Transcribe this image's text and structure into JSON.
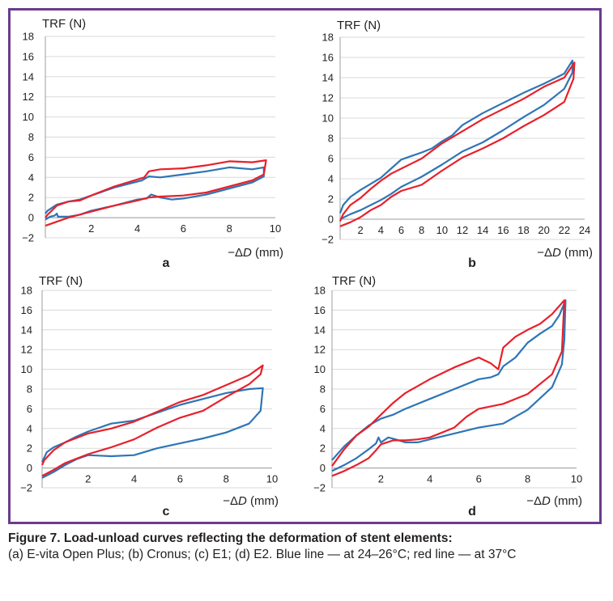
{
  "figure": {
    "caption_title": "Figure 7. Load-unload curves reflecting the deformation of stent elements:",
    "caption_body": "(a) E-vita Open Plus; (b) Cronus; (c) E1; (d) E2. Blue line — at 24–26°C; red line — at 37°C"
  },
  "colors": {
    "blue": "#2e75b6",
    "red": "#e8202a",
    "frame": "#6b3b8e",
    "grid": "#d9d9d9"
  },
  "chart_data": [
    {
      "type": "line",
      "panel_label": "a",
      "ylabel": "TRF (N)",
      "xlabel_prefix": "−Δ",
      "xlabel_var": "D",
      "xlabel_unit": " (mm)",
      "xlim": [
        0,
        10
      ],
      "ylim": [
        -2,
        18
      ],
      "xticks": [
        2,
        4,
        6,
        8,
        10
      ],
      "yticks": [
        -2,
        0,
        2,
        4,
        6,
        8,
        10,
        12,
        14,
        16,
        18
      ],
      "series": [
        {
          "color": "blue",
          "points": [
            [
              0,
              -0.2
            ],
            [
              0.2,
              0.1
            ],
            [
              0.4,
              0.2
            ],
            [
              0.5,
              0.4
            ],
            [
              0.55,
              0.1
            ],
            [
              1,
              0.1
            ],
            [
              1.5,
              0.3
            ],
            [
              2,
              0.7
            ],
            [
              3,
              1.2
            ],
            [
              4,
              1.8
            ],
            [
              4.4,
              1.9
            ],
            [
              4.6,
              2.3
            ],
            [
              5,
              2.0
            ],
            [
              5.5,
              1.8
            ],
            [
              6,
              1.9
            ],
            [
              7,
              2.3
            ],
            [
              8,
              2.9
            ],
            [
              9,
              3.5
            ],
            [
              9.5,
              4.1
            ],
            [
              9.5,
              5.0
            ],
            [
              9,
              4.8
            ],
            [
              8,
              5.0
            ],
            [
              7,
              4.6
            ],
            [
              6,
              4.3
            ],
            [
              5,
              4.0
            ],
            [
              4.5,
              4.1
            ],
            [
              4.2,
              3.7
            ],
            [
              3,
              3.0
            ],
            [
              2,
              2.2
            ],
            [
              1.5,
              1.8
            ],
            [
              1,
              1.6
            ],
            [
              0.5,
              1.3
            ],
            [
              0.1,
              0.7
            ],
            [
              0,
              0.4
            ]
          ]
        },
        {
          "color": "red",
          "points": [
            [
              0,
              -0.8
            ],
            [
              0.5,
              -0.4
            ],
            [
              1,
              0
            ],
            [
              2,
              0.6
            ],
            [
              3,
              1.2
            ],
            [
              4,
              1.7
            ],
            [
              4.5,
              2.0
            ],
            [
              5,
              2.1
            ],
            [
              6,
              2.2
            ],
            [
              7,
              2.5
            ],
            [
              8,
              3.1
            ],
            [
              9,
              3.7
            ],
            [
              9.5,
              4.3
            ],
            [
              9.6,
              5.7
            ],
            [
              9,
              5.5
            ],
            [
              8,
              5.6
            ],
            [
              7,
              5.2
            ],
            [
              6,
              4.9
            ],
            [
              5,
              4.8
            ],
            [
              4.5,
              4.6
            ],
            [
              4.3,
              4.0
            ],
            [
              3,
              3.1
            ],
            [
              2,
              2.2
            ],
            [
              1.5,
              1.7
            ],
            [
              1,
              1.6
            ],
            [
              0.5,
              1.2
            ],
            [
              0.1,
              0.3
            ],
            [
              0,
              0
            ]
          ]
        }
      ]
    },
    {
      "type": "line",
      "panel_label": "b",
      "ylabel": "TRF (N)",
      "xlabel_prefix": "−Δ",
      "xlabel_var": "D",
      "xlabel_unit": " (mm)",
      "xlim": [
        0,
        24
      ],
      "ylim": [
        -2,
        18
      ],
      "xticks": [
        2,
        4,
        6,
        8,
        10,
        12,
        14,
        16,
        18,
        20,
        22,
        24
      ],
      "yticks": [
        -2,
        0,
        2,
        4,
        6,
        8,
        10,
        12,
        14,
        16,
        18
      ],
      "series": [
        {
          "color": "blue",
          "points": [
            [
              0,
              0
            ],
            [
              1,
              0.5
            ],
            [
              2,
              0.9
            ],
            [
              3,
              1.4
            ],
            [
              4,
              1.9
            ],
            [
              5,
              2.5
            ],
            [
              6,
              3.2
            ],
            [
              8,
              4.2
            ],
            [
              10,
              5.4
            ],
            [
              12,
              6.7
            ],
            [
              14,
              7.6
            ],
            [
              16,
              8.8
            ],
            [
              18,
              10.1
            ],
            [
              20,
              11.3
            ],
            [
              22,
              12.9
            ],
            [
              22.8,
              14.5
            ],
            [
              22.8,
              15.7
            ],
            [
              22,
              14.4
            ],
            [
              20,
              13.4
            ],
            [
              18,
              12.5
            ],
            [
              16,
              11.5
            ],
            [
              14,
              10.5
            ],
            [
              12,
              9.3
            ],
            [
              11,
              8.3
            ],
            [
              10,
              7.7
            ],
            [
              9,
              7.0
            ],
            [
              8,
              6.6
            ],
            [
              6,
              5.9
            ],
            [
              5,
              5.0
            ],
            [
              4,
              4.1
            ],
            [
              3,
              3.5
            ],
            [
              2,
              2.9
            ],
            [
              1,
              2.2
            ],
            [
              0.3,
              1.4
            ],
            [
              0,
              0.6
            ]
          ]
        },
        {
          "color": "red",
          "points": [
            [
              0,
              -0.7
            ],
            [
              1,
              -0.3
            ],
            [
              2,
              0.2
            ],
            [
              3,
              0.9
            ],
            [
              4,
              1.4
            ],
            [
              5,
              2.2
            ],
            [
              6,
              2.8
            ],
            [
              8,
              3.4
            ],
            [
              10,
              4.8
            ],
            [
              12,
              6.1
            ],
            [
              14,
              7.0
            ],
            [
              16,
              8.0
            ],
            [
              18,
              9.2
            ],
            [
              20,
              10.3
            ],
            [
              22,
              11.6
            ],
            [
              22.9,
              13.9
            ],
            [
              23,
              15.5
            ],
            [
              22,
              14.0
            ],
            [
              20,
              13.1
            ],
            [
              18,
              11.9
            ],
            [
              16,
              10.9
            ],
            [
              14,
              9.9
            ],
            [
              12,
              8.7
            ],
            [
              10,
              7.5
            ],
            [
              8,
              6.0
            ],
            [
              6,
              5.0
            ],
            [
              5,
              4.5
            ],
            [
              4,
              3.8
            ],
            [
              3,
              3.0
            ],
            [
              2,
              2.1
            ],
            [
              1,
              1.4
            ],
            [
              0.3,
              0.5
            ],
            [
              0,
              -0.2
            ]
          ]
        }
      ]
    },
    {
      "type": "line",
      "panel_label": "c",
      "ylabel": "TRF (N)",
      "xlabel_prefix": "−Δ",
      "xlabel_var": "D",
      "xlabel_unit": " (mm)",
      "xlim": [
        0,
        10
      ],
      "ylim": [
        -2,
        18
      ],
      "xticks": [
        2,
        4,
        6,
        8,
        10
      ],
      "yticks": [
        -2,
        0,
        2,
        4,
        6,
        8,
        10,
        12,
        14,
        16,
        18
      ],
      "series": [
        {
          "color": "blue",
          "points": [
            [
              0,
              -1
            ],
            [
              0.5,
              -0.4
            ],
            [
              1,
              0.3
            ],
            [
              1.5,
              0.9
            ],
            [
              2,
              1.3
            ],
            [
              3,
              1.2
            ],
            [
              4,
              1.3
            ],
            [
              5,
              2.0
            ],
            [
              6,
              2.5
            ],
            [
              7,
              3.0
            ],
            [
              8,
              3.6
            ],
            [
              9,
              4.5
            ],
            [
              9.5,
              5.8
            ],
            [
              9.6,
              8.1
            ],
            [
              9,
              8.0
            ],
            [
              8,
              7.6
            ],
            [
              7,
              7.0
            ],
            [
              6,
              6.4
            ],
            [
              5,
              5.6
            ],
            [
              4,
              4.8
            ],
            [
              3,
              4.5
            ],
            [
              2,
              3.7
            ],
            [
              1.5,
              3.2
            ],
            [
              1,
              2.6
            ],
            [
              0.5,
              2.1
            ],
            [
              0.2,
              1.6
            ],
            [
              0,
              0.6
            ]
          ]
        },
        {
          "color": "red",
          "points": [
            [
              0,
              -0.8
            ],
            [
              0.5,
              -0.2
            ],
            [
              1,
              0.5
            ],
            [
              2,
              1.4
            ],
            [
              3,
              2.1
            ],
            [
              4,
              2.9
            ],
            [
              5,
              4.1
            ],
            [
              6,
              5.1
            ],
            [
              7,
              5.8
            ],
            [
              8,
              7.2
            ],
            [
              9,
              8.5
            ],
            [
              9.5,
              9.5
            ],
            [
              9.6,
              10.4
            ],
            [
              9,
              9.4
            ],
            [
              8,
              8.4
            ],
            [
              7,
              7.4
            ],
            [
              6,
              6.7
            ],
            [
              5,
              5.7
            ],
            [
              4,
              4.7
            ],
            [
              3,
              4.0
            ],
            [
              2,
              3.5
            ],
            [
              1,
              2.6
            ],
            [
              0.5,
              1.8
            ],
            [
              0.1,
              0.8
            ],
            [
              0,
              0.3
            ]
          ]
        }
      ]
    },
    {
      "type": "line",
      "panel_label": "d",
      "ylabel": "TRF (N)",
      "xlabel_prefix": "−Δ",
      "xlabel_var": "D",
      "xlabel_unit": " (mm)",
      "xlim": [
        0,
        10
      ],
      "ylim": [
        -2,
        18
      ],
      "xticks": [
        2,
        4,
        6,
        8,
        10
      ],
      "yticks": [
        -2,
        0,
        2,
        4,
        6,
        8,
        10,
        12,
        14,
        16,
        18
      ],
      "series": [
        {
          "color": "blue",
          "points": [
            [
              0,
              -0.3
            ],
            [
              0.5,
              0.3
            ],
            [
              1,
              1.0
            ],
            [
              1.5,
              1.9
            ],
            [
              1.8,
              2.5
            ],
            [
              1.9,
              3.1
            ],
            [
              2,
              2.6
            ],
            [
              2.3,
              3.1
            ],
            [
              2.6,
              2.9
            ],
            [
              3,
              2.6
            ],
            [
              3.5,
              2.6
            ],
            [
              4,
              2.9
            ],
            [
              5,
              3.5
            ],
            [
              6,
              4.1
            ],
            [
              7,
              4.5
            ],
            [
              8,
              5.9
            ],
            [
              9,
              8.2
            ],
            [
              9.4,
              10.5
            ],
            [
              9.5,
              13.0
            ],
            [
              9.55,
              17.0
            ],
            [
              9.3,
              15.5
            ],
            [
              9,
              14.4
            ],
            [
              8.5,
              13.6
            ],
            [
              8,
              12.7
            ],
            [
              7.5,
              11.2
            ],
            [
              7,
              10.3
            ],
            [
              6.8,
              9.5
            ],
            [
              6.5,
              9.2
            ],
            [
              6,
              9.0
            ],
            [
              5,
              8.0
            ],
            [
              4,
              7.0
            ],
            [
              3,
              6.0
            ],
            [
              2.5,
              5.4
            ],
            [
              2,
              5.0
            ],
            [
              1.5,
              4.3
            ],
            [
              1,
              3.3
            ],
            [
              0.5,
              2.2
            ],
            [
              0,
              0.8
            ]
          ]
        },
        {
          "color": "red",
          "points": [
            [
              0,
              -0.8
            ],
            [
              0.5,
              -0.3
            ],
            [
              1,
              0.3
            ],
            [
              1.5,
              1.0
            ],
            [
              1.8,
              1.8
            ],
            [
              2,
              2.4
            ],
            [
              2.5,
              2.8
            ],
            [
              3,
              2.8
            ],
            [
              3.5,
              2.9
            ],
            [
              4,
              3.1
            ],
            [
              5,
              4.1
            ],
            [
              5.5,
              5.2
            ],
            [
              6,
              6.0
            ],
            [
              7,
              6.5
            ],
            [
              8,
              7.5
            ],
            [
              9,
              9.5
            ],
            [
              9.4,
              11.8
            ],
            [
              9.5,
              17.0
            ],
            [
              9,
              15.6
            ],
            [
              8.5,
              14.6
            ],
            [
              8,
              14.0
            ],
            [
              7.5,
              13.3
            ],
            [
              7,
              12.2
            ],
            [
              6.8,
              10.0
            ],
            [
              6.5,
              10.6
            ],
            [
              6,
              11.2
            ],
            [
              5,
              10.2
            ],
            [
              4,
              9.0
            ],
            [
              3,
              7.6
            ],
            [
              2.5,
              6.6
            ],
            [
              2,
              5.4
            ],
            [
              1.5,
              4.2
            ],
            [
              1,
              3.3
            ],
            [
              0.5,
              1.9
            ],
            [
              0,
              0.2
            ]
          ]
        }
      ]
    }
  ]
}
